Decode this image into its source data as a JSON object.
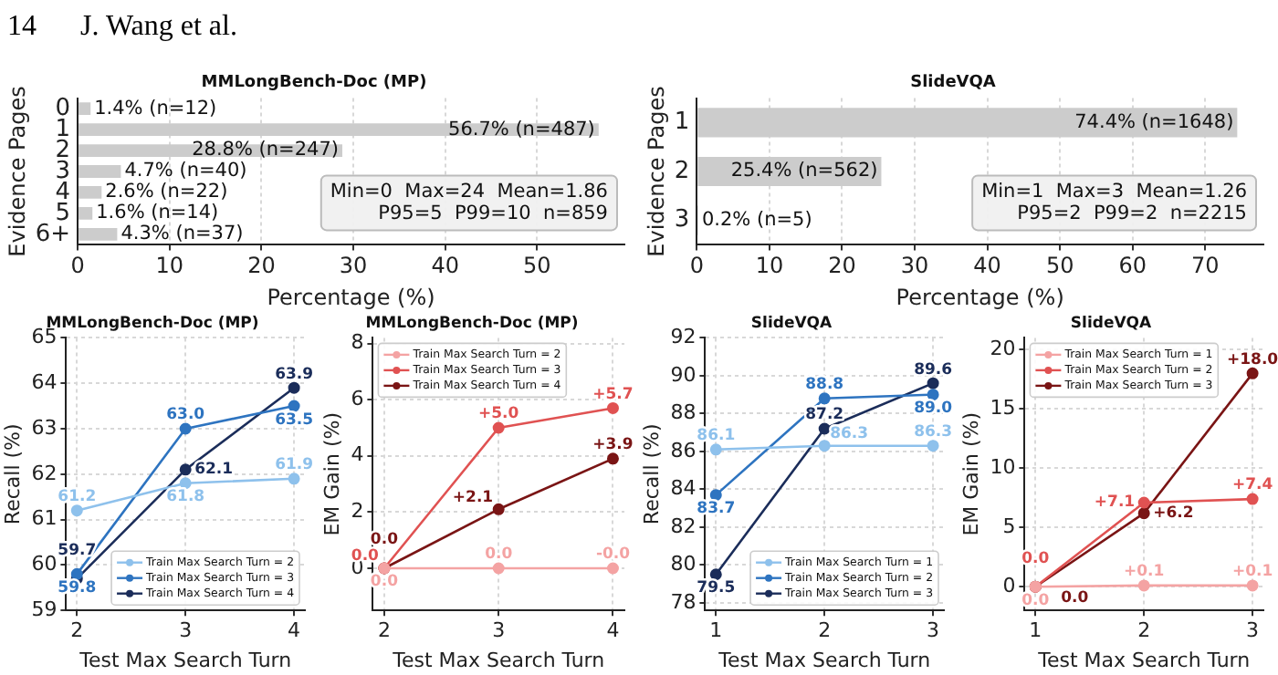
{
  "chart_data": [
    {
      "type": "other",
      "title": "14      J. Wang et al."
    },
    {
      "type": "bar",
      "orientation": "horizontal",
      "title": "MMLongBench-Doc (MP)",
      "xlabel": "Percentage (%)",
      "ylabel": "Evidence Pages",
      "categories": [
        "0",
        "1",
        "2",
        "3",
        "4",
        "5",
        "6+"
      ],
      "values": [
        1.4,
        56.7,
        28.8,
        4.7,
        2.6,
        1.6,
        4.3
      ],
      "color": "#cccccc",
      "value_labels": [
        "1.4% (n=12)",
        "56.7% (n=487)",
        "28.8% (n=247)",
        "4.7% (n=40)",
        "2.6% (n=22)",
        "1.6% (n=14)",
        "4.3% (n=37)"
      ],
      "xlim": [
        0,
        59.5
      ],
      "xticks": [
        0,
        10,
        20,
        30,
        40,
        50
      ],
      "grid": "x",
      "annotations": [
        "Min=0  Max=24  Mean=1.86",
        "P95=5  P99=10  n=859"
      ]
    },
    {
      "type": "bar",
      "orientation": "horizontal",
      "title": "SlideVQA",
      "xlabel": "Percentage (%)",
      "ylabel": "Evidence Pages",
      "categories": [
        "1",
        "2",
        "3"
      ],
      "values": [
        74.4,
        25.4,
        0.2
      ],
      "color": "#cccccc",
      "value_labels": [
        "74.4% (n=1648)",
        "25.4% (n=562)",
        "0.2% (n=5)"
      ],
      "xlim": [
        0,
        78
      ],
      "xticks": [
        0,
        10,
        20,
        30,
        40,
        50,
        60,
        70
      ],
      "grid": "x",
      "annotations": [
        "Min=1  Max=3  Mean=1.26",
        "P95=2  P99=2  n=2215"
      ]
    },
    {
      "type": "line",
      "title": "MMLongBench-Doc (MP)",
      "xlabel": "Test Max Search Turn",
      "ylabel": "Recall (%)",
      "x": [
        2,
        3,
        4
      ],
      "series": [
        {
          "name": "Train Max Search Turn = 2",
          "color": "#8ec1ec",
          "values": [
            61.2,
            61.8,
            61.9
          ],
          "value_labels": [
            "61.2",
            "61.8",
            "61.9"
          ]
        },
        {
          "name": "Train Max Search Turn = 3",
          "color": "#2e74c0",
          "values": [
            59.8,
            63.0,
            63.5
          ],
          "value_labels": [
            "59.8",
            "63.0",
            "63.5"
          ]
        },
        {
          "name": "Train Max Search Turn = 4",
          "color": "#1b2d5a",
          "values": [
            59.7,
            62.1,
            63.9
          ],
          "value_labels": [
            "59.7",
            "62.1",
            "63.9"
          ]
        }
      ],
      "xlim": [
        1.9,
        4.1
      ],
      "xticks": [
        2,
        3,
        4
      ],
      "ylim": [
        59,
        65
      ],
      "yticks": [
        59,
        60,
        61,
        62,
        63,
        64,
        65
      ],
      "grid": true,
      "legend": "bottom right",
      "marker": "circle"
    },
    {
      "type": "line",
      "title": "MMLongBench-Doc (MP)",
      "xlabel": "Test Max Search Turn",
      "ylabel": "EM Gain (%)",
      "x": [
        2,
        3,
        4
      ],
      "series": [
        {
          "name": "Train Max Search Turn = 2",
          "color": "#f4a3a3",
          "values": [
            0,
            0,
            0
          ],
          "value_labels": [
            "0.0",
            "0.0",
            "-0.0"
          ]
        },
        {
          "name": "Train Max Search Turn = 3",
          "color": "#e05252",
          "values": [
            0,
            5.0,
            5.7
          ],
          "value_labels": [
            "0.0",
            "+5.0",
            "+5.7"
          ]
        },
        {
          "name": "Train Max Search Turn = 4",
          "color": "#7a1515",
          "values": [
            0,
            2.1,
            3.9
          ],
          "value_labels": [
            "0.0",
            "+2.1",
            "+3.9"
          ]
        }
      ],
      "xlim": [
        1.9,
        4.1
      ],
      "xticks": [
        2,
        3,
        4
      ],
      "ylim": [
        -1.5,
        8.2
      ],
      "yticks": [
        0,
        2,
        4,
        6,
        8
      ],
      "grid": true,
      "legend": "top left",
      "marker": "circle"
    },
    {
      "type": "line",
      "title": "SlideVQA",
      "xlabel": "Test Max Search Turn",
      "ylabel": "Recall (%)",
      "x": [
        1,
        2,
        3
      ],
      "series": [
        {
          "name": "Train Max Search Turn = 1",
          "color": "#8ec1ec",
          "values": [
            86.1,
            86.3,
            86.3
          ],
          "value_labels": [
            "86.1",
            "86.3",
            "86.3"
          ]
        },
        {
          "name": "Train Max Search Turn = 2",
          "color": "#2e74c0",
          "values": [
            83.7,
            88.8,
            89.0
          ],
          "value_labels": [
            "83.7",
            "88.8",
            "89.0"
          ]
        },
        {
          "name": "Train Max Search Turn = 3",
          "color": "#1b2d5a",
          "values": [
            79.5,
            87.2,
            89.6
          ],
          "value_labels": [
            "79.5",
            "87.2",
            "89.6"
          ]
        }
      ],
      "xlim": [
        0.9,
        3.1
      ],
      "xticks": [
        1,
        2,
        3
      ],
      "ylim": [
        77.6,
        92
      ],
      "yticks": [
        78,
        80,
        82,
        84,
        86,
        88,
        90,
        92
      ],
      "grid": true,
      "legend": "bottom right",
      "marker": "circle"
    },
    {
      "type": "line",
      "title": "SlideVQA",
      "xlabel": "Test Max Search Turn",
      "ylabel": "EM Gain (%)",
      "x": [
        1,
        2,
        3
      ],
      "series": [
        {
          "name": "Train Max Search Turn = 1",
          "color": "#f4a3a3",
          "values": [
            0,
            0.1,
            0.1
          ],
          "value_labels": [
            "0.0",
            "+0.1",
            "+0.1"
          ]
        },
        {
          "name": "Train Max Search Turn = 2",
          "color": "#e05252",
          "values": [
            0,
            7.1,
            7.4
          ],
          "value_labels": [
            "0.0",
            "+7.1",
            "+7.4"
          ]
        },
        {
          "name": "Train Max Search Turn = 3",
          "color": "#7a1515",
          "values": [
            0,
            6.2,
            18.0
          ],
          "value_labels": [
            "0.0",
            "+6.2",
            "+18.0"
          ]
        }
      ],
      "xlim": [
        0.9,
        3.1
      ],
      "xticks": [
        1,
        2,
        3
      ],
      "ylim": [
        -2,
        21
      ],
      "yticks": [
        0,
        5,
        10,
        15,
        20
      ],
      "grid": true,
      "legend": "top left",
      "marker": "circle"
    }
  ]
}
